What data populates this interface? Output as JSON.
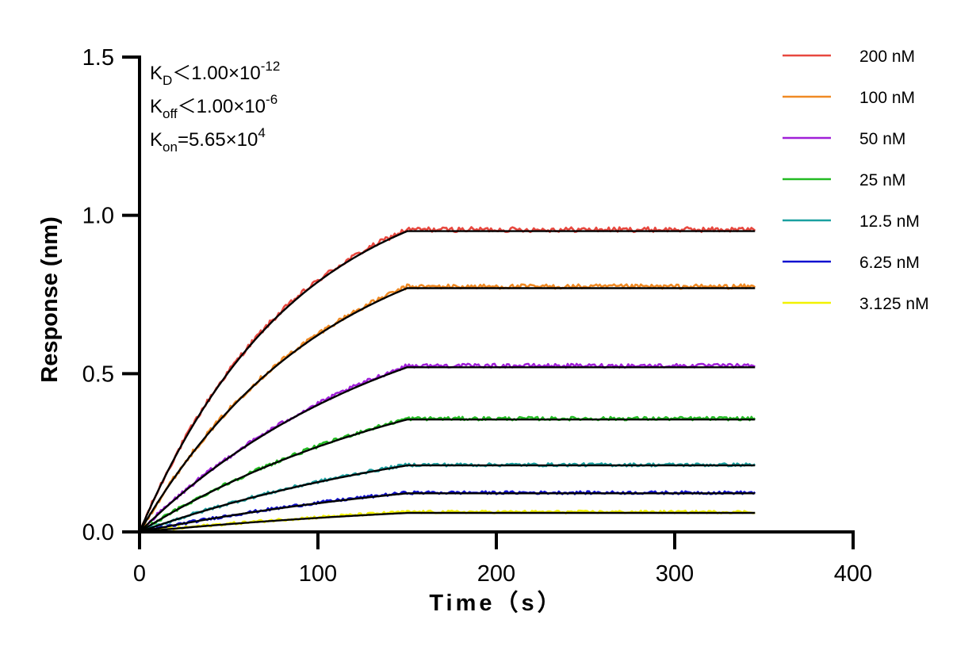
{
  "chart_data": {
    "type": "line",
    "xlabel": "Time（s）",
    "ylabel": "Response (nm)",
    "xlim": [
      0,
      400
    ],
    "ylim": [
      0,
      1.5
    ],
    "x_ticks": [
      "0",
      "100",
      "200",
      "300",
      "400"
    ],
    "y_ticks": [
      "0.0",
      "0.5",
      "1.0",
      "1.5"
    ],
    "x_tick_values": [
      0,
      100,
      200,
      300,
      400
    ],
    "y_tick_values": [
      0,
      0.5,
      1.0,
      1.5
    ],
    "grid": false,
    "legend_position": "top-right",
    "association_end": 150,
    "x_end": 345,
    "annotations": {
      "kd": {
        "label": "K",
        "sub": "D",
        "op": "<",
        "value": "1.00×10",
        "exp": "-12"
      },
      "koff": {
        "label": "K",
        "sub": "off",
        "op": "<",
        "value": "1.00×10",
        "exp": "-6"
      },
      "kon": {
        "label": "K",
        "sub": "on",
        "op": "=",
        "value": "5.65×10",
        "exp": "4"
      }
    },
    "fit_color": "#000000",
    "series": [
      {
        "name": "200 nM",
        "color": "#e8483f",
        "plateau": 0.95,
        "noise_plateau": 0.955
      },
      {
        "name": "100 nM",
        "color": "#f08a24",
        "plateau": 0.77,
        "noise_plateau": 0.775
      },
      {
        "name": "50 nM",
        "color": "#a020d8",
        "plateau": 0.52,
        "noise_plateau": 0.525
      },
      {
        "name": "25 nM",
        "color": "#22bb22",
        "plateau": 0.355,
        "noise_plateau": 0.358
      },
      {
        "name": "12.5 nM",
        "color": "#1aa0a0",
        "plateau": 0.21,
        "noise_plateau": 0.212
      },
      {
        "name": "6.25 nM",
        "color": "#1010d0",
        "plateau": 0.122,
        "noise_plateau": 0.124
      },
      {
        "name": "3.125 nM",
        "color": "#f2f200",
        "plateau": 0.06,
        "noise_plateau": 0.063
      }
    ]
  }
}
